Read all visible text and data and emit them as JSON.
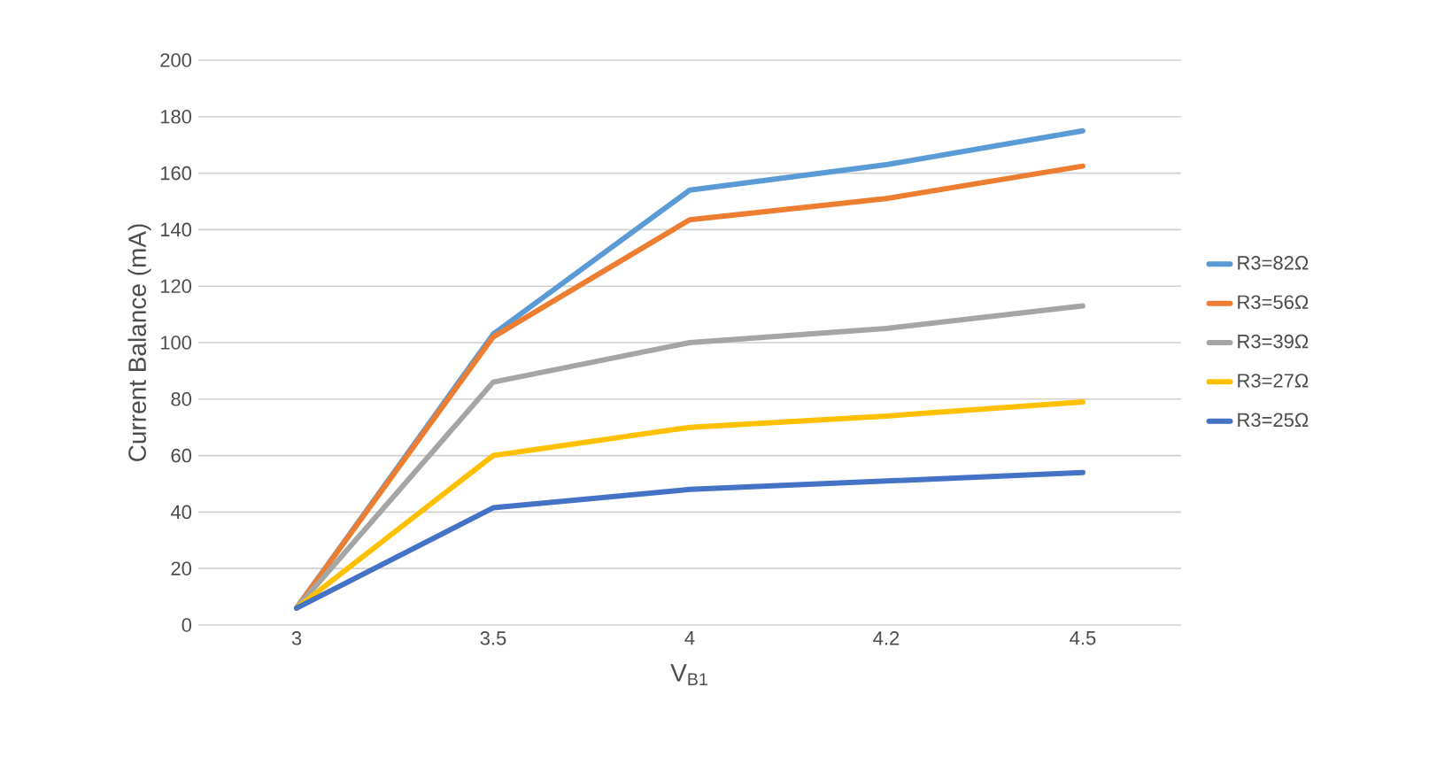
{
  "chart_data": {
    "type": "line",
    "xlabel": "V$_{B1}$",
    "ylabel": "Current Balance (mA)",
    "categories": [
      "3",
      "3.5",
      "4",
      "4.2",
      "4.5"
    ],
    "series": [
      {
        "name": "R3=82Ω",
        "color": "#5b9bd5",
        "values": [
          6,
          103,
          154,
          163,
          175
        ]
      },
      {
        "name": "R3=56Ω",
        "color": "#ed7d31",
        "values": [
          6,
          102,
          143.5,
          151,
          162.5
        ]
      },
      {
        "name": "R3=39Ω",
        "color": "#a5a5a5",
        "values": [
          6,
          86,
          100,
          105,
          113
        ]
      },
      {
        "name": "R3=27Ω",
        "color": "#ffc000",
        "values": [
          6,
          60,
          70,
          74,
          79
        ]
      },
      {
        "name": "R3=25Ω",
        "color": "#4472c4",
        "values": [
          6,
          41.5,
          48,
          51,
          54
        ]
      }
    ],
    "ylim": [
      0,
      200
    ],
    "yticks": [
      0,
      20,
      40,
      60,
      80,
      100,
      120,
      140,
      160,
      180,
      200
    ],
    "grid": "y",
    "legend": "right",
    "marker": "none",
    "line_style": "solid"
  }
}
